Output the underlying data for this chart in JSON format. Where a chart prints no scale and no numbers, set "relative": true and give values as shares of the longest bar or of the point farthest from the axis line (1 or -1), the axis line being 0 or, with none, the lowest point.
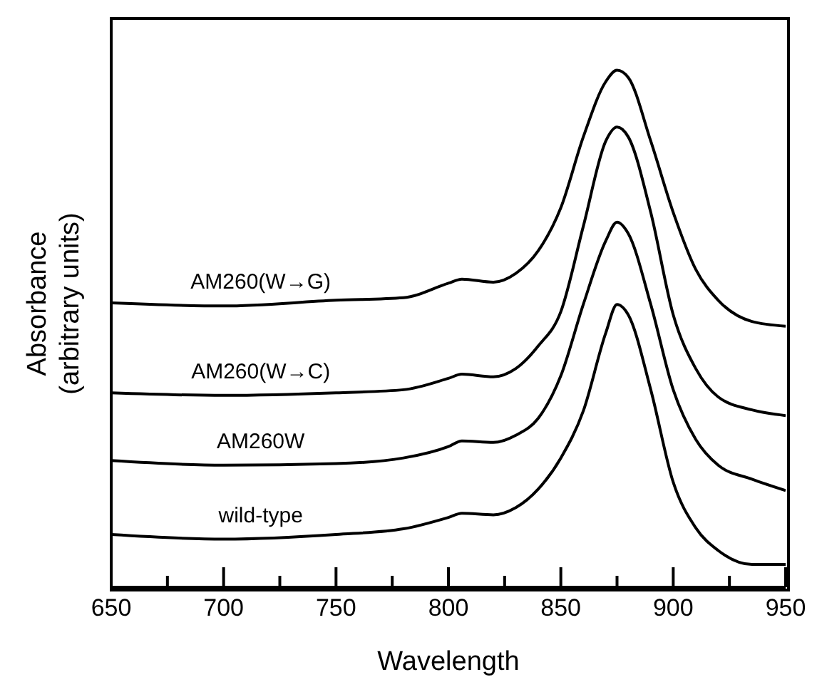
{
  "chart_data": {
    "type": "line",
    "relative": true,
    "xlabel": "Wavelength",
    "ylabel": "Absorbance\n(arbitrary units)",
    "x": [
      650,
      700,
      750,
      780,
      800,
      806,
      820,
      830,
      840,
      850,
      860,
      870,
      875,
      880,
      890,
      900,
      910,
      920,
      935,
      950
    ],
    "xlim": [
      650,
      950
    ],
    "xticks": [
      650,
      {
        "value": 675,
        "label": null
      },
      700,
      {
        "value": 725,
        "label": null
      },
      750,
      {
        "value": 775,
        "label": null
      },
      800,
      {
        "value": 825,
        "label": null
      },
      850,
      {
        "value": 875,
        "label": null
      },
      900,
      {
        "value": 925,
        "label": null
      },
      950
    ],
    "series": [
      {
        "name": "AM260(W→G)",
        "color": "#000000",
        "values": [
          0.55,
          0.544,
          0.555,
          0.56,
          0.588,
          0.596,
          0.59,
          0.607,
          0.651,
          0.734,
          0.871,
          0.978,
          1,
          0.986,
          0.863,
          0.725,
          0.615,
          0.555,
          0.514,
          0.505
        ]
      },
      {
        "name": "AM260(W→C)",
        "color": "#000000",
        "values": [
          0.376,
          0.371,
          0.376,
          0.382,
          0.404,
          0.412,
          0.407,
          0.423,
          0.467,
          0.533,
          0.698,
          0.863,
          0.89,
          0.871,
          0.725,
          0.527,
          0.423,
          0.368,
          0.343,
          0.332
        ]
      },
      {
        "name": "AM260W",
        "color": "#000000",
        "values": [
          0.245,
          0.236,
          0.239,
          0.25,
          0.272,
          0.283,
          0.28,
          0.294,
          0.327,
          0.409,
          0.547,
          0.67,
          0.706,
          0.684,
          0.547,
          0.382,
          0.286,
          0.236,
          0.209,
          0.187
        ]
      },
      {
        "name": "wild-type",
        "color": "#000000",
        "values": [
          0.102,
          0.093,
          0.102,
          0.113,
          0.135,
          0.143,
          0.14,
          0.154,
          0.19,
          0.25,
          0.341,
          0.492,
          0.547,
          0.527,
          0.382,
          0.203,
          0.115,
          0.071,
          0.044,
          0.044
        ]
      }
    ],
    "grid": false,
    "legend": false,
    "marker": "none",
    "line_style": "solid"
  }
}
